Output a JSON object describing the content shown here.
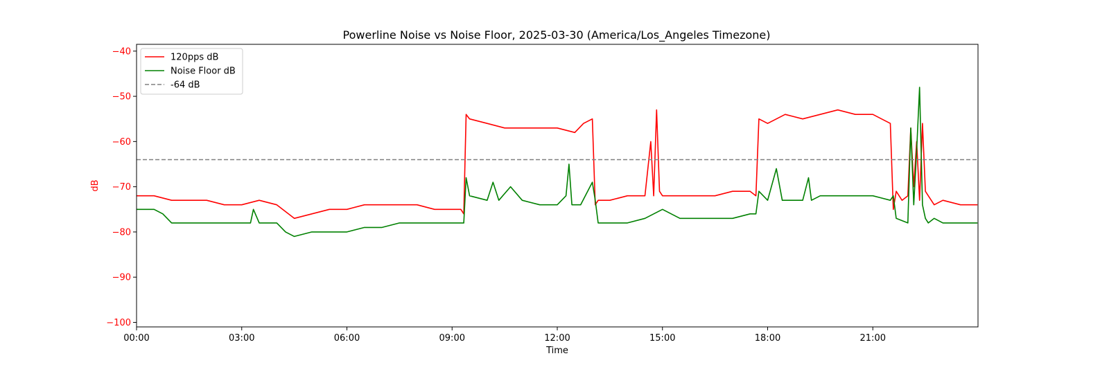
{
  "chart_data": {
    "type": "line",
    "title": "Powerline Noise vs Noise Floor, 2025-03-30 (America/Los_Angeles Timezone)",
    "xlabel": "Time",
    "ylabel": "dB",
    "xlim": [
      "00:00",
      "24:00"
    ],
    "ylim": [
      -101,
      -38.5
    ],
    "x_ticks": [
      "00:00",
      "03:00",
      "06:00",
      "09:00",
      "12:00",
      "15:00",
      "18:00",
      "21:00"
    ],
    "y_ticks": [
      -40,
      -50,
      -60,
      -70,
      -80,
      -90,
      -100
    ],
    "y_tick_labels": [
      "−40",
      "−50",
      "−60",
      "−70",
      "−80",
      "−90",
      "−100"
    ],
    "grid": false,
    "legend_position": "top-left",
    "series": [
      {
        "name": "120pps dB",
        "color": "#ff0000",
        "style": "solid",
        "x": [
          "00:00",
          "00:30",
          "01:00",
          "01:30",
          "02:00",
          "02:30",
          "03:00",
          "03:30",
          "04:00",
          "04:30",
          "05:00",
          "05:30",
          "06:00",
          "06:30",
          "07:00",
          "07:30",
          "08:00",
          "08:30",
          "09:00",
          "09:15",
          "09:20",
          "09:24",
          "09:30",
          "10:00",
          "10:30",
          "11:00",
          "11:30",
          "12:00",
          "12:30",
          "12:45",
          "13:00",
          "13:05",
          "13:10",
          "13:30",
          "14:00",
          "14:30",
          "14:40",
          "14:45",
          "14:50",
          "14:55",
          "15:00",
          "15:10",
          "15:30",
          "16:00",
          "16:30",
          "17:00",
          "17:30",
          "17:40",
          "17:45",
          "18:00",
          "18:30",
          "19:00",
          "19:30",
          "20:00",
          "20:30",
          "21:00",
          "21:30",
          "21:35",
          "21:40",
          "21:50",
          "22:00",
          "22:05",
          "22:10",
          "22:15",
          "22:20",
          "22:25",
          "22:30",
          "22:35",
          "22:45",
          "23:00",
          "23:30",
          "23:59"
        ],
        "y": [
          -72,
          -72,
          -73,
          -73,
          -73,
          -74,
          -74,
          -73,
          -74,
          -77,
          -76,
          -75,
          -75,
          -74,
          -74,
          -74,
          -74,
          -75,
          -75,
          -75,
          -76,
          -54,
          -55,
          -56,
          -57,
          -57,
          -57,
          -57,
          -58,
          -56,
          -55,
          -74,
          -73,
          -73,
          -72,
          -72,
          -60,
          -72,
          -53,
          -71,
          -72,
          -72,
          -72,
          -72,
          -72,
          -71,
          -71,
          -72,
          -55,
          -56,
          -54,
          -55,
          -54,
          -53,
          -54,
          -54,
          -56,
          -75,
          -71,
          -73,
          -72,
          -57,
          -70,
          -60,
          -73,
          -56,
          -71,
          -72,
          -74,
          -73,
          -74,
          -74
        ]
      },
      {
        "name": "Noise Floor dB",
        "color": "#008000",
        "style": "solid",
        "x": [
          "00:00",
          "00:15",
          "00:30",
          "00:45",
          "01:00",
          "01:30",
          "02:00",
          "02:30",
          "03:00",
          "03:15",
          "03:20",
          "03:30",
          "04:00",
          "04:15",
          "04:30",
          "05:00",
          "05:30",
          "06:00",
          "06:30",
          "07:00",
          "07:30",
          "08:00",
          "08:30",
          "09:00",
          "09:15",
          "09:20",
          "09:24",
          "09:30",
          "10:00",
          "10:10",
          "10:20",
          "10:40",
          "11:00",
          "11:30",
          "12:00",
          "12:15",
          "12:20",
          "12:25",
          "12:40",
          "13:00",
          "13:05",
          "13:10",
          "13:30",
          "14:00",
          "14:30",
          "15:00",
          "15:30",
          "16:00",
          "16:30",
          "17:00",
          "17:30",
          "17:40",
          "17:45",
          "18:00",
          "18:15",
          "18:25",
          "18:30",
          "19:00",
          "19:10",
          "19:15",
          "19:30",
          "20:00",
          "20:30",
          "21:00",
          "21:30",
          "21:35",
          "21:40",
          "22:00",
          "22:05",
          "22:10",
          "22:15",
          "22:20",
          "22:25",
          "22:30",
          "22:35",
          "22:45",
          "23:00",
          "23:30",
          "23:59"
        ],
        "y": [
          -75,
          -75,
          -75,
          -76,
          -78,
          -78,
          -78,
          -78,
          -78,
          -78,
          -75,
          -78,
          -78,
          -80,
          -81,
          -80,
          -80,
          -80,
          -79,
          -79,
          -78,
          -78,
          -78,
          -78,
          -78,
          -78,
          -68,
          -72,
          -73,
          -69,
          -73,
          -70,
          -73,
          -74,
          -74,
          -72,
          -65,
          -74,
          -74,
          -69,
          -73,
          -78,
          -78,
          -78,
          -77,
          -75,
          -77,
          -77,
          -77,
          -77,
          -76,
          -76,
          -71,
          -73,
          -66,
          -73,
          -73,
          -73,
          -68,
          -73,
          -72,
          -72,
          -72,
          -72,
          -73,
          -72,
          -77,
          -78,
          -57,
          -74,
          -62,
          -48,
          -74,
          -77,
          -78,
          -77,
          -78,
          -78,
          -78
        ]
      },
      {
        "name": "-64 dB",
        "color": "#808080",
        "style": "dashed",
        "x": [
          "00:00",
          "23:59"
        ],
        "y": [
          -64,
          -64
        ]
      }
    ]
  }
}
